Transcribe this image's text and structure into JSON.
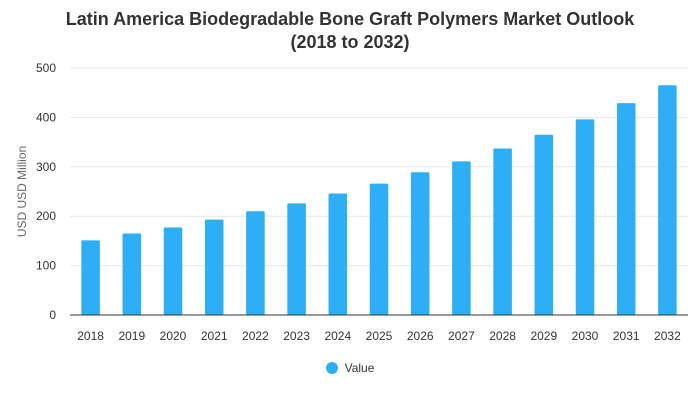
{
  "colors": {
    "bar": "#2eaef5",
    "grid": "#e6e6e6",
    "axis": "#333333"
  },
  "chart_data": {
    "type": "bar",
    "title_lines": [
      "Latin America Biodegradable Bone Graft Polymers Market Outlook",
      "(2018 to 2032)"
    ],
    "xlabel": "",
    "ylabel": "USD USD Million",
    "ylim": [
      0,
      500
    ],
    "yticks": [
      0,
      100,
      200,
      300,
      400,
      500
    ],
    "grid": true,
    "legend_position": "bottom-center",
    "categories": [
      "2018",
      "2019",
      "2020",
      "2021",
      "2022",
      "2023",
      "2024",
      "2025",
      "2026",
      "2027",
      "2028",
      "2029",
      "2030",
      "2031",
      "2032"
    ],
    "series": [
      {
        "name": "Value",
        "values": [
          151,
          165,
          177,
          193,
          210,
          226,
          246,
          266,
          289,
          311,
          337,
          365,
          396,
          429,
          465
        ]
      }
    ]
  }
}
